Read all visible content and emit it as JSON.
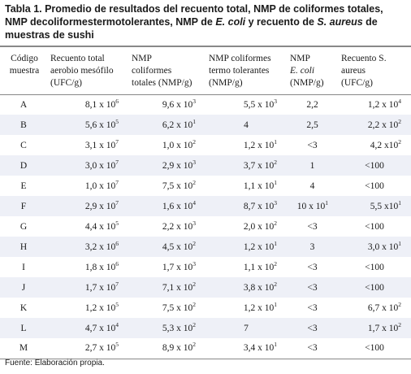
{
  "caption": {
    "part1": "Tabla 1. Promedio de resultados del recuento total, NMP de coliformes totales, NMP decoliformestermotolerantes, NMP de ",
    "ecoli": "E. coli",
    "part2": " y recuento de ",
    "saureus": "S. aureus",
    "part3": " de muestras de sushi"
  },
  "table": {
    "headers": [
      {
        "lines": "Código\nmuestra"
      },
      {
        "lines": "Recuento total\naerobio mesófilo\n(UFC/g)"
      },
      {
        "lines": "NMP\ncoliformes\ntotales (NMP/g)"
      },
      {
        "lines": "NMP coliformes\ntermo tolerantes\n(NMP/g)"
      },
      {
        "line1": "NMP",
        "line2": "E. coli",
        "line3": "(NMP/g)"
      },
      {
        "lines": "Recuento S.\naureus\n(UFC/g)"
      }
    ],
    "rows": [
      {
        "code": "A",
        "rt": {
          "b": "8,1 x 10",
          "e": "6"
        },
        "ct": {
          "b": "9,6 x 10",
          "e": "3"
        },
        "tt": {
          "b": "5,5 x 10",
          "e": "3"
        },
        "ec": {
          "b": "2,2",
          "e": ""
        },
        "sa": {
          "b": "1,2 x 10",
          "e": "4"
        }
      },
      {
        "code": "B",
        "rt": {
          "b": "5,6 x 10",
          "e": "5"
        },
        "ct": {
          "b": "6,2 x 10",
          "e": "1"
        },
        "tt": {
          "b": "4",
          "e": ""
        },
        "ec": {
          "b": "2,5",
          "e": ""
        },
        "sa": {
          "b": "2,2 x 10",
          "e": "2"
        }
      },
      {
        "code": "C",
        "rt": {
          "b": "3,1 x 10",
          "e": "7"
        },
        "ct": {
          "b": "1,0 x 10",
          "e": "2"
        },
        "tt": {
          "b": "1,2 x 10",
          "e": "1"
        },
        "ec": {
          "b": "<3",
          "e": ""
        },
        "sa": {
          "b": "4,2 x10",
          "e": "2"
        }
      },
      {
        "code": "D",
        "rt": {
          "b": "3,0 x 10",
          "e": "7"
        },
        "ct": {
          "b": "2,9 x 10",
          "e": "3"
        },
        "tt": {
          "b": "3,7 x 10",
          "e": "2"
        },
        "ec": {
          "b": "1",
          "e": ""
        },
        "sa": {
          "b": "<100",
          "e": ""
        }
      },
      {
        "code": "E",
        "rt": {
          "b": "1,0 x 10",
          "e": "7"
        },
        "ct": {
          "b": "7,5 x 10",
          "e": "2"
        },
        "tt": {
          "b": "1,1 x 10",
          "e": "1"
        },
        "ec": {
          "b": "4",
          "e": ""
        },
        "sa": {
          "b": "<100",
          "e": ""
        }
      },
      {
        "code": "F",
        "rt": {
          "b": "2,9 x 10",
          "e": "7"
        },
        "ct": {
          "b": "1,6 x 10",
          "e": "4"
        },
        "tt": {
          "b": "8,7 x 10",
          "e": "3"
        },
        "ec": {
          "b": "10 x 10",
          "e": "1"
        },
        "sa": {
          "b": "5,5 x10",
          "e": "1"
        }
      },
      {
        "code": "G",
        "rt": {
          "b": "4,4 x 10",
          "e": "5"
        },
        "ct": {
          "b": "2,2 x 10",
          "e": "3"
        },
        "tt": {
          "b": "2,0 x 10",
          "e": "2"
        },
        "ec": {
          "b": "<3",
          "e": ""
        },
        "sa": {
          "b": "<100",
          "e": ""
        }
      },
      {
        "code": "H",
        "rt": {
          "b": "3,2 x 10",
          "e": "6"
        },
        "ct": {
          "b": "4,5 x 10",
          "e": "2"
        },
        "tt": {
          "b": "1,2 x 10",
          "e": "1"
        },
        "ec": {
          "b": "3",
          "e": ""
        },
        "sa": {
          "b": "3,0 x 10",
          "e": "1"
        }
      },
      {
        "code": "I",
        "rt": {
          "b": "1,8 x 10",
          "e": "6"
        },
        "ct": {
          "b": "1,7 x 10",
          "e": "3"
        },
        "tt": {
          "b": "1,1 x 10",
          "e": "2"
        },
        "ec": {
          "b": "<3",
          "e": ""
        },
        "sa": {
          "b": "<100",
          "e": ""
        }
      },
      {
        "code": "J",
        "rt": {
          "b": "1,7 x 10",
          "e": "7"
        },
        "ct": {
          "b": "7,1 x 10",
          "e": "2"
        },
        "tt": {
          "b": "3,8 x 10",
          "e": "2"
        },
        "ec": {
          "b": "<3",
          "e": ""
        },
        "sa": {
          "b": "<100",
          "e": ""
        }
      },
      {
        "code": "K",
        "rt": {
          "b": "1,2 x 10",
          "e": "5"
        },
        "ct": {
          "b": "7,5 x 10",
          "e": "2"
        },
        "tt": {
          "b": "1,2 x 10",
          "e": "1"
        },
        "ec": {
          "b": "<3",
          "e": ""
        },
        "sa": {
          "b": "6,7 x 10",
          "e": "2"
        }
      },
      {
        "code": "L",
        "rt": {
          "b": "4,7 x 10",
          "e": "4"
        },
        "ct": {
          "b": "5,3 x 10",
          "e": "2"
        },
        "tt": {
          "b": "7",
          "e": ""
        },
        "ec": {
          "b": "<3",
          "e": ""
        },
        "sa": {
          "b": "1,7 x 10",
          "e": "2"
        }
      },
      {
        "code": "M",
        "rt": {
          "b": "2,7 x 10",
          "e": "5"
        },
        "ct": {
          "b": "8,9 x 10",
          "e": "2"
        },
        "tt": {
          "b": "3,4 x 10",
          "e": "1"
        },
        "ec": {
          "b": "<3",
          "e": ""
        },
        "sa": {
          "b": "<100",
          "e": ""
        }
      }
    ]
  },
  "source": "Fuente: Elaboración propia."
}
